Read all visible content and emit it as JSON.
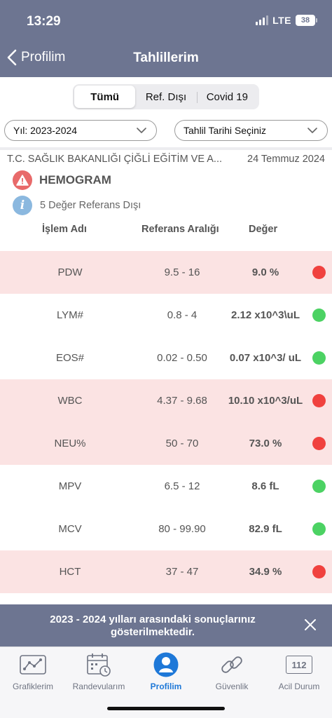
{
  "status_bar": {
    "time": "13:29",
    "network": "LTE",
    "battery": "38"
  },
  "nav": {
    "back_label": "Profilim",
    "title": "Tahlillerim"
  },
  "segments": [
    {
      "label": "Tümü",
      "active": true
    },
    {
      "label": "Ref. Dışı",
      "active": false
    },
    {
      "label": "Covid 19",
      "active": false
    }
  ],
  "filters": {
    "year": "Yıl: 2023-2024",
    "date": "Tahlil Tarihi Seçiniz"
  },
  "report": {
    "hospital": "T.C. SAĞLIK BAKANLIĞI ÇİĞLİ EĞİTİM VE A...",
    "date": "24 Temmuz 2024",
    "test_name": "HEMOGRAM",
    "info": "5 Değer Referans Dışı"
  },
  "columns": {
    "name": "İşlem Adı",
    "reference": "Referans Aralığı",
    "value": "Değer"
  },
  "results": [
    {
      "name": "PDW",
      "reference": "9.5 - 16",
      "value": "9.0 %",
      "status": "out"
    },
    {
      "name": "LYM#",
      "reference": "0.8 - 4",
      "value": "2.12 x10^3\\uL",
      "status": "normal"
    },
    {
      "name": "EOS#",
      "reference": "0.02 - 0.50",
      "value": "0.07 x10^3/ uL",
      "status": "normal"
    },
    {
      "name": "WBC",
      "reference": "4.37 - 9.68",
      "value": "10.10 x10^3/uL",
      "status": "out"
    },
    {
      "name": "NEU%",
      "reference": "50 - 70",
      "value": "73.0 %",
      "status": "out"
    },
    {
      "name": "MPV",
      "reference": "6.5 - 12",
      "value": "8.6 fL",
      "status": "normal"
    },
    {
      "name": "MCV",
      "reference": "80 - 99.90",
      "value": "82.9 fL",
      "status": "normal"
    },
    {
      "name": "HCT",
      "reference": "37 - 47",
      "value": "34.9 %",
      "status": "out"
    }
  ],
  "banner": {
    "text": "2023 - 2024 yılları arasındaki sonuçlarınız gösterilmektedir."
  },
  "tabs": [
    {
      "label": "Grafiklerim",
      "icon": "chart-icon",
      "active": false
    },
    {
      "label": "Randevularım",
      "icon": "calendar-icon",
      "active": false
    },
    {
      "label": "Profilim",
      "icon": "profile-icon",
      "active": true
    },
    {
      "label": "Güvenlik",
      "icon": "link-icon",
      "active": false
    },
    {
      "label": "Acil Durum",
      "icon": "emergency-112-icon",
      "active": false
    },
    {
      "icon_text": "112"
    }
  ],
  "colors": {
    "header": "#6d7591",
    "out_row": "#fbe3e3",
    "status_out": "#f0413e",
    "status_normal": "#4cd263",
    "active_tab": "#1e78d8"
  }
}
